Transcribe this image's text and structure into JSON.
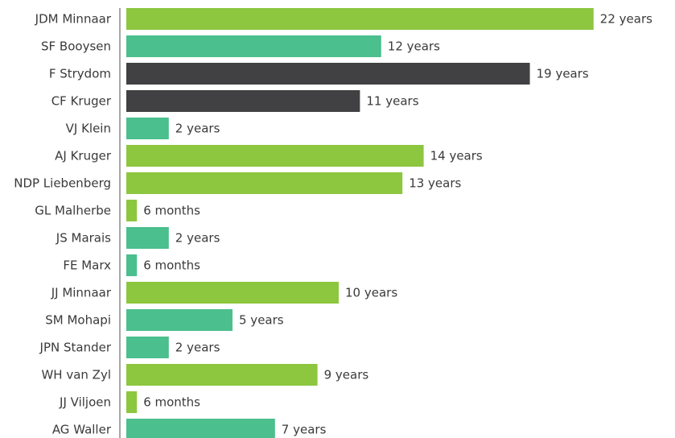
{
  "chart_data": {
    "type": "bar",
    "orientation": "horizontal",
    "categories": [
      "JDM Minnaar",
      "SF Booysen",
      "F Strydom",
      "CF Kruger",
      "VJ Klein",
      "AJ Kruger",
      "NDP Liebenberg",
      "GL Malherbe",
      "JS Marais",
      "FE Marx",
      "JJ Minnaar",
      "SM Mohapi",
      "JPN Stander",
      "WH van Zyl",
      "JJ Viljoen",
      "AG Waller"
    ],
    "values": [
      22,
      12,
      19,
      11,
      2,
      14,
      13,
      0.5,
      2,
      0.5,
      10,
      5,
      2,
      9,
      0.5,
      7
    ],
    "value_labels": [
      "22 years",
      "12 years",
      "19 years",
      "11 years",
      "2 years",
      "14 years",
      "13 years",
      "6 months",
      "2 years",
      "6 months",
      "10 years",
      "5 years",
      "2 years",
      "9 years",
      "6 months",
      "7 years"
    ],
    "value_unit": "years",
    "bar_colors": [
      "#8dc63f",
      "#4bbf8e",
      "#414042",
      "#414042",
      "#4bbf8e",
      "#8dc63f",
      "#8dc63f",
      "#8dc63f",
      "#4bbf8e",
      "#4bbf8e",
      "#8dc63f",
      "#4bbf8e",
      "#4bbf8e",
      "#8dc63f",
      "#8dc63f",
      "#4bbf8e"
    ],
    "title": "",
    "xlabel": "",
    "ylabel": "",
    "xlim": [
      0,
      22
    ],
    "grid": false,
    "legend": "none"
  },
  "colors": {
    "green": "#8dc63f",
    "teal": "#4bbf8e",
    "dark": "#414042",
    "axis": "#8a8a8a",
    "text": "#3a3a3a"
  }
}
